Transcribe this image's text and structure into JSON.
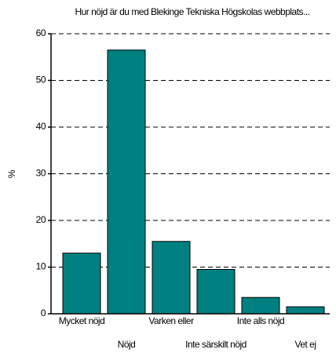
{
  "chart_data": {
    "type": "bar",
    "title": "Hur nöjd är du med Blekinge Tekniska Högskolas webbplats...",
    "y_label": "%",
    "categories": [
      "Mycket nöjd",
      "Nöjd",
      "Varken eller",
      "Inte särskilt nöjd",
      "Inte alls nöjd",
      "Vet ej"
    ],
    "values": [
      13,
      56.5,
      15.5,
      9.5,
      3.5,
      1.5
    ],
    "color": "#008080",
    "ylim": [
      0,
      60
    ],
    "yticks": [
      0,
      10,
      20,
      30,
      40,
      50,
      60
    ],
    "grid": true
  }
}
